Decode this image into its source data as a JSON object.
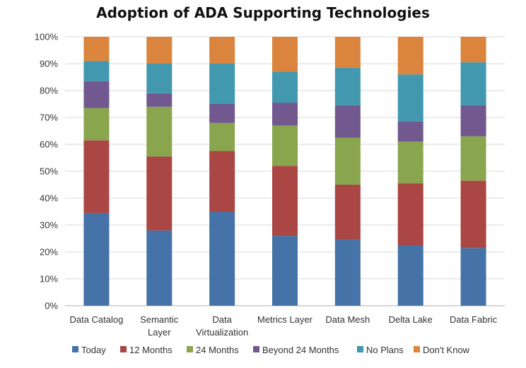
{
  "chart_data": {
    "type": "bar",
    "stacked": true,
    "percent_stacked": true,
    "title": "Adoption of ADA Supporting Technologies",
    "ylim": [
      0,
      100
    ],
    "yticks": [
      "0%",
      "10%",
      "20%",
      "30%",
      "40%",
      "50%",
      "60%",
      "70%",
      "80%",
      "90%",
      "100%"
    ],
    "grid": true,
    "legend_position": "bottom",
    "categories": [
      [
        "Data Catalog"
      ],
      [
        "Semantic",
        "Layer"
      ],
      [
        "Data",
        "Virtualization"
      ],
      [
        "Metrics Layer"
      ],
      [
        "Data Mesh"
      ],
      [
        "Delta Lake"
      ],
      [
        "Data Fabric"
      ]
    ],
    "series": [
      {
        "name": "Today",
        "color": "#4572a7",
        "values": [
          34.5,
          28,
          35,
          26,
          24.5,
          22.5,
          21.5
        ]
      },
      {
        "name": "12 Months",
        "color": "#aa4643",
        "values": [
          27,
          27.5,
          22.5,
          26,
          20.5,
          23,
          25
        ]
      },
      {
        "name": "24 Months",
        "color": "#89a54e",
        "values": [
          12,
          18.5,
          10.5,
          15,
          17.5,
          15.5,
          16.5
        ]
      },
      {
        "name": "Beyond 24 Months",
        "color": "#71588f",
        "values": [
          10,
          5,
          7,
          8.5,
          12,
          7.5,
          11.5
        ]
      },
      {
        "name": "No Plans",
        "color": "#4198af",
        "values": [
          7.5,
          11,
          15,
          11.5,
          14,
          17.5,
          16
        ]
      },
      {
        "name": "Don't Know",
        "color": "#db843d",
        "values": [
          9,
          10,
          10,
          13,
          11.5,
          14,
          9.5
        ]
      }
    ]
  }
}
